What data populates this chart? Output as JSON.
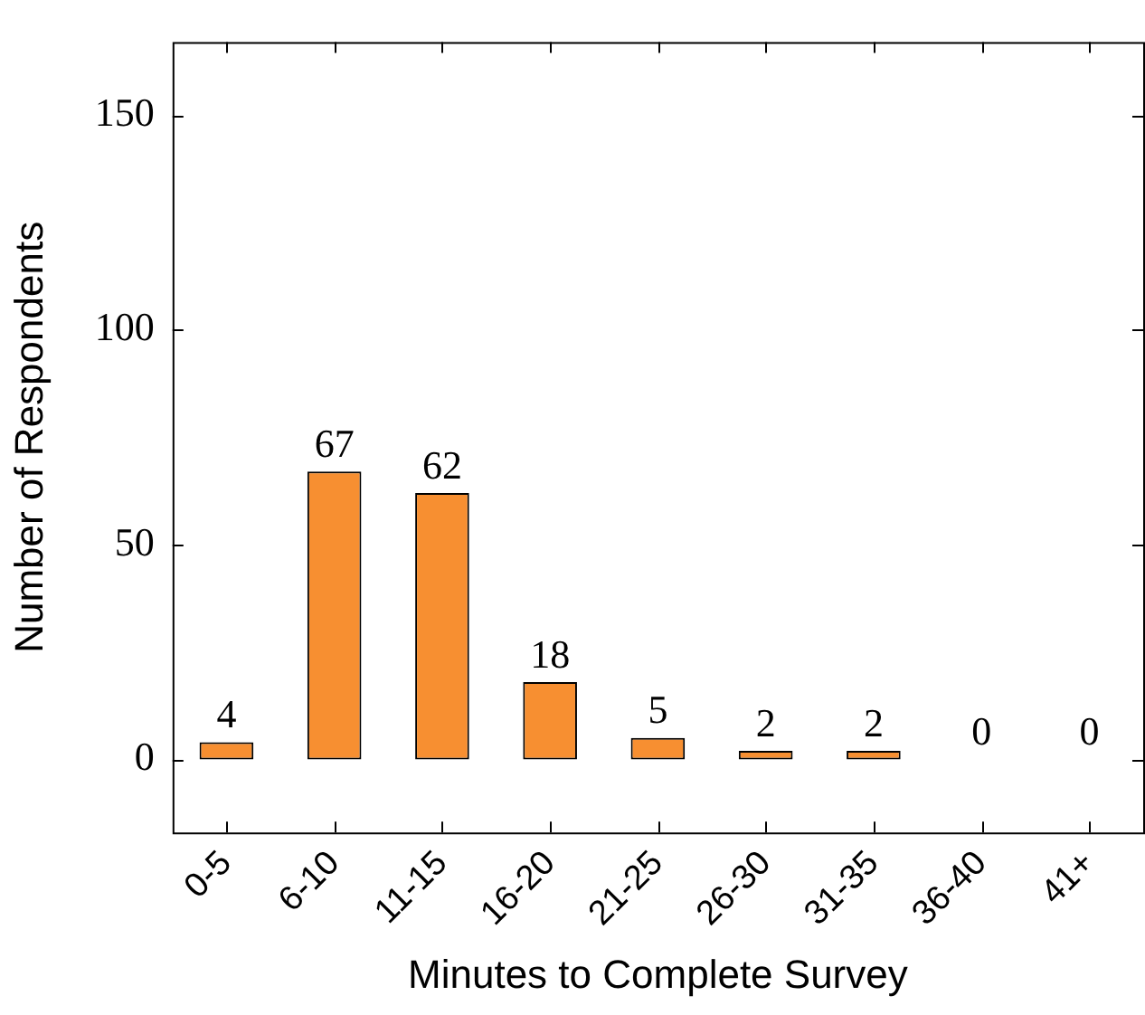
{
  "chart_data": {
    "type": "bar",
    "xlabel": "Minutes to Complete Survey",
    "ylabel": "Number of Respondents",
    "categories": [
      "0-5",
      "6-10",
      "11-15",
      "16-20",
      "21-25",
      "26-30",
      "31-35",
      "36-40",
      "41+"
    ],
    "values": [
      4,
      67,
      62,
      18,
      5,
      2,
      2,
      0,
      0
    ],
    "color": "#f78f31",
    "ylim": [
      -17,
      167
    ],
    "yticks": [
      0,
      50,
      100,
      150
    ],
    "data_labels": true,
    "grid": false,
    "legend": false
  }
}
